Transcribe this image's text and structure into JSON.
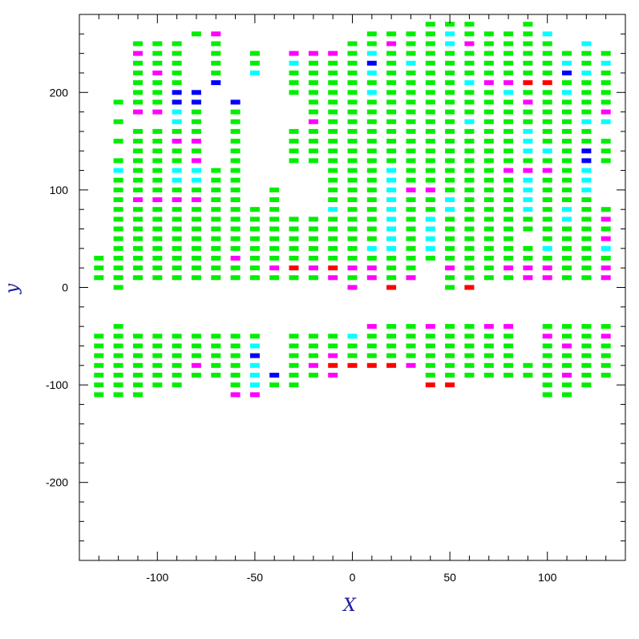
{
  "chart_data": {
    "type": "heatmap",
    "title": "",
    "xlabel": "X",
    "ylabel": "y",
    "xlim": [
      -140,
      140
    ],
    "ylim": [
      -280,
      280
    ],
    "x_ticks": [
      -100,
      -50,
      0,
      50,
      100
    ],
    "y_ticks": [
      -200,
      -100,
      0,
      100,
      200
    ],
    "x_tick_labels": [
      "-100",
      "-50",
      "0",
      "50",
      "100"
    ],
    "y_tick_labels": [
      "-200",
      "-100",
      "0",
      "100",
      "200"
    ],
    "grid": false,
    "legend": "none",
    "cell_size": [
      6,
      5
    ],
    "colors": {
      "green": "#00ee00",
      "cyan": "#00ffff",
      "magenta": "#ff00ff",
      "blue": "#0000ff",
      "red": "#ff0000",
      "axis_title": "#1a1aa0"
    },
    "columns": [
      {
        "x": -130,
        "ranges": [
          [
            10,
            30
          ],
          [
            -110,
            -50
          ]
        ]
      },
      {
        "x": -120,
        "ranges": [
          [
            0,
            0
          ],
          [
            10,
            130
          ],
          [
            150,
            150
          ],
          [
            170,
            170
          ],
          [
            190,
            190
          ],
          [
            -110,
            -40
          ]
        ]
      },
      {
        "x": -110,
        "ranges": [
          [
            10,
            160
          ],
          [
            180,
            250
          ],
          [
            -110,
            -50
          ]
        ]
      },
      {
        "x": -100,
        "ranges": [
          [
            10,
            160
          ],
          [
            180,
            250
          ],
          [
            -100,
            -50
          ]
        ]
      },
      {
        "x": -90,
        "ranges": [
          [
            10,
            250
          ],
          [
            -100,
            -50
          ]
        ]
      },
      {
        "x": -80,
        "ranges": [
          [
            10,
            200
          ],
          [
            260,
            260
          ],
          [
            -90,
            -50
          ]
        ]
      },
      {
        "x": -70,
        "ranges": [
          [
            10,
            120
          ],
          [
            210,
            260
          ],
          [
            -90,
            -50
          ]
        ]
      },
      {
        "x": -60,
        "ranges": [
          [
            10,
            110
          ],
          [
            120,
            190
          ],
          [
            -110,
            -50
          ]
        ]
      },
      {
        "x": -50,
        "ranges": [
          [
            10,
            80
          ],
          [
            220,
            240
          ],
          [
            -110,
            -50
          ]
        ]
      },
      {
        "x": -40,
        "ranges": [
          [
            10,
            100
          ],
          [
            -100,
            -90
          ]
        ]
      },
      {
        "x": -30,
        "ranges": [
          [
            10,
            70
          ],
          [
            130,
            160
          ],
          [
            200,
            240
          ],
          [
            -100,
            -50
          ]
        ]
      },
      {
        "x": -20,
        "ranges": [
          [
            10,
            70
          ],
          [
            130,
            240
          ],
          [
            -90,
            -50
          ]
        ]
      },
      {
        "x": -10,
        "ranges": [
          [
            10,
            240
          ],
          [
            -90,
            -50
          ]
        ]
      },
      {
        "x": 0,
        "ranges": [
          [
            0,
            250
          ],
          [
            -80,
            -50
          ]
        ]
      },
      {
        "x": 10,
        "ranges": [
          [
            10,
            260
          ],
          [
            -80,
            -40
          ]
        ]
      },
      {
        "x": 20,
        "ranges": [
          [
            0,
            260
          ],
          [
            -80,
            -40
          ]
        ]
      },
      {
        "x": 30,
        "ranges": [
          [
            10,
            260
          ],
          [
            -80,
            -40
          ]
        ]
      },
      {
        "x": 40,
        "ranges": [
          [
            30,
            270
          ],
          [
            -100,
            -40
          ]
        ]
      },
      {
        "x": 50,
        "ranges": [
          [
            0,
            270
          ],
          [
            -100,
            -40
          ]
        ]
      },
      {
        "x": 60,
        "ranges": [
          [
            0,
            270
          ],
          [
            -90,
            -40
          ]
        ]
      },
      {
        "x": 70,
        "ranges": [
          [
            10,
            260
          ],
          [
            -90,
            -40
          ]
        ]
      },
      {
        "x": 80,
        "ranges": [
          [
            10,
            260
          ],
          [
            -90,
            -40
          ]
        ]
      },
      {
        "x": 90,
        "ranges": [
          [
            10,
            40
          ],
          [
            60,
            270
          ],
          [
            -90,
            -80
          ]
        ]
      },
      {
        "x": 100,
        "ranges": [
          [
            10,
            260
          ],
          [
            -110,
            -40
          ]
        ]
      },
      {
        "x": 110,
        "ranges": [
          [
            10,
            240
          ],
          [
            -110,
            -40
          ]
        ]
      },
      {
        "x": 120,
        "ranges": [
          [
            10,
            250
          ],
          [
            -100,
            -40
          ]
        ]
      },
      {
        "x": 130,
        "ranges": [
          [
            10,
            80
          ],
          [
            130,
            150
          ],
          [
            170,
            240
          ],
          [
            -90,
            -40
          ]
        ]
      }
    ],
    "colored_cells": {
      "cyan": [
        [
          -120,
          120
        ],
        [
          -90,
          110
        ],
        [
          -90,
          120
        ],
        [
          -90,
          170
        ],
        [
          -90,
          180
        ],
        [
          -80,
          110
        ],
        [
          -80,
          120
        ],
        [
          -50,
          -100
        ],
        [
          -50,
          -90
        ],
        [
          -50,
          -80
        ],
        [
          -50,
          -60
        ],
        [
          -50,
          220
        ],
        [
          -30,
          230
        ],
        [
          -10,
          80
        ],
        [
          0,
          -50
        ],
        [
          10,
          40
        ],
        [
          10,
          200
        ],
        [
          10,
          220
        ],
        [
          10,
          240
        ],
        [
          20,
          40
        ],
        [
          20,
          50
        ],
        [
          20,
          60
        ],
        [
          20,
          70
        ],
        [
          20,
          80
        ],
        [
          20,
          90
        ],
        [
          20,
          100
        ],
        [
          20,
          110
        ],
        [
          20,
          120
        ],
        [
          30,
          230
        ],
        [
          40,
          40
        ],
        [
          40,
          50
        ],
        [
          40,
          60
        ],
        [
          40,
          70
        ],
        [
          50,
          80
        ],
        [
          50,
          90
        ],
        [
          50,
          260
        ],
        [
          50,
          250
        ],
        [
          60,
          170
        ],
        [
          60,
          210
        ],
        [
          80,
          200
        ],
        [
          90,
          80
        ],
        [
          90,
          90
        ],
        [
          90,
          100
        ],
        [
          90,
          110
        ],
        [
          90,
          140
        ],
        [
          90,
          150
        ],
        [
          90,
          160
        ],
        [
          100,
          40
        ],
        [
          100,
          140
        ],
        [
          100,
          260
        ],
        [
          110,
          70
        ],
        [
          110,
          80
        ],
        [
          110,
          200
        ],
        [
          110,
          230
        ],
        [
          120,
          100
        ],
        [
          120,
          110
        ],
        [
          120,
          120
        ],
        [
          120,
          170
        ],
        [
          120,
          220
        ],
        [
          120,
          250
        ],
        [
          130,
          40
        ],
        [
          130,
          170
        ],
        [
          130,
          230
        ]
      ],
      "magenta": [
        [
          -110,
          90
        ],
        [
          -110,
          180
        ],
        [
          -110,
          240
        ],
        [
          -100,
          90
        ],
        [
          -100,
          180
        ],
        [
          -100,
          220
        ],
        [
          -90,
          90
        ],
        [
          -90,
          150
        ],
        [
          -80,
          90
        ],
        [
          -80,
          130
        ],
        [
          -80,
          150
        ],
        [
          -80,
          -80
        ],
        [
          -70,
          260
        ],
        [
          -60,
          30
        ],
        [
          -60,
          -110
        ],
        [
          -50,
          -110
        ],
        [
          -40,
          20
        ],
        [
          -30,
          240
        ],
        [
          -20,
          20
        ],
        [
          -20,
          170
        ],
        [
          -20,
          240
        ],
        [
          -20,
          -80
        ],
        [
          -10,
          10
        ],
        [
          -10,
          20
        ],
        [
          -10,
          240
        ],
        [
          -10,
          -70
        ],
        [
          -10,
          -90
        ],
        [
          0,
          0
        ],
        [
          0,
          20
        ],
        [
          10,
          10
        ],
        [
          10,
          20
        ],
        [
          10,
          -40
        ],
        [
          20,
          250
        ],
        [
          30,
          10
        ],
        [
          30,
          100
        ],
        [
          30,
          -80
        ],
        [
          40,
          100
        ],
        [
          40,
          -40
        ],
        [
          50,
          20
        ],
        [
          60,
          250
        ],
        [
          70,
          210
        ],
        [
          70,
          -40
        ],
        [
          80,
          20
        ],
        [
          80,
          120
        ],
        [
          80,
          210
        ],
        [
          80,
          -40
        ],
        [
          90,
          10
        ],
        [
          90,
          20
        ],
        [
          90,
          120
        ],
        [
          90,
          190
        ],
        [
          100,
          10
        ],
        [
          100,
          20
        ],
        [
          100,
          120
        ],
        [
          100,
          -50
        ],
        [
          110,
          -60
        ],
        [
          110,
          -90
        ],
        [
          130,
          10
        ],
        [
          130,
          20
        ],
        [
          130,
          50
        ],
        [
          130,
          70
        ],
        [
          130,
          180
        ],
        [
          130,
          -50
        ]
      ],
      "blue": [
        [
          -90,
          190
        ],
        [
          -90,
          200
        ],
        [
          -80,
          190
        ],
        [
          -80,
          200
        ],
        [
          -70,
          210
        ],
        [
          -60,
          190
        ],
        [
          -50,
          -70
        ],
        [
          -40,
          -90
        ],
        [
          10,
          230
        ],
        [
          110,
          220
        ],
        [
          120,
          130
        ],
        [
          120,
          140
        ]
      ],
      "red": [
        [
          -30,
          20
        ],
        [
          -10,
          20
        ],
        [
          -10,
          -80
        ],
        [
          0,
          -80
        ],
        [
          10,
          -80
        ],
        [
          20,
          0
        ],
        [
          20,
          -80
        ],
        [
          40,
          -100
        ],
        [
          50,
          -100
        ],
        [
          60,
          0
        ],
        [
          90,
          210
        ],
        [
          100,
          210
        ]
      ]
    }
  }
}
